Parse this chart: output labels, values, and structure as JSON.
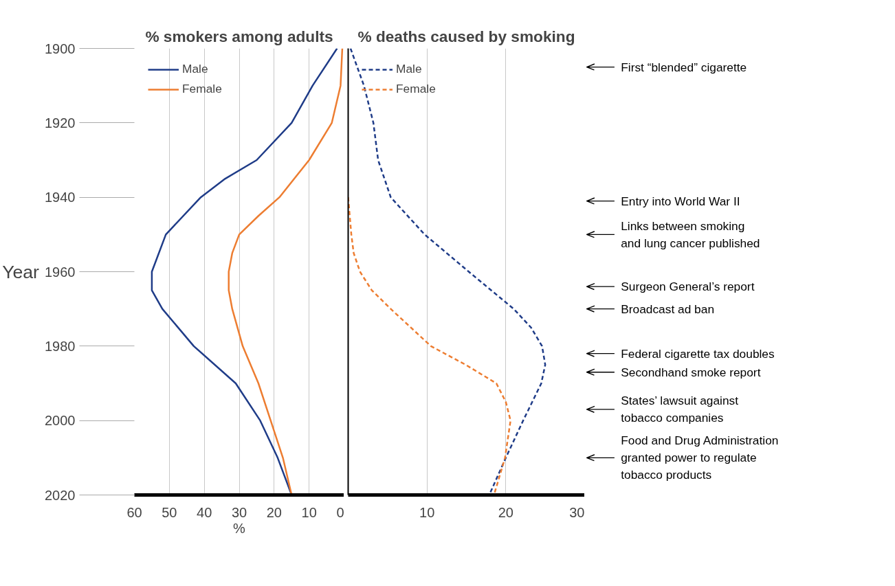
{
  "chart_data": [
    {
      "type": "line",
      "orientation": "horizontal",
      "title": "% smokers among adults",
      "xlabel": "%",
      "ylabel": "Year",
      "xlim": [
        60,
        0
      ],
      "ylim": [
        2020,
        1900
      ],
      "xticks": [
        60,
        50,
        40,
        30,
        20,
        10,
        0
      ],
      "yticks": [
        1900,
        1920,
        1940,
        1960,
        1980,
        2000,
        2020
      ],
      "grid": "x",
      "legend": "top left",
      "marker": "none",
      "series": [
        {
          "name": "Male",
          "color": "#1f3c88",
          "line_style": "solid",
          "x": [
            1900,
            1910,
            1920,
            1930,
            1935,
            1940,
            1950,
            1960,
            1965,
            1970,
            1980,
            1990,
            2000,
            2010,
            2020
          ],
          "values": [
            2,
            9,
            15,
            25,
            34,
            41,
            51,
            55,
            55,
            52,
            43,
            31,
            24,
            19,
            15
          ]
        },
        {
          "name": "Female",
          "color": "#ed7d31",
          "line_style": "solid",
          "x": [
            1900,
            1910,
            1920,
            1930,
            1940,
            1945,
            1950,
            1955,
            1960,
            1965,
            1970,
            1980,
            1990,
            2000,
            2010,
            2020
          ],
          "values": [
            0.5,
            1,
            3.5,
            10,
            18.5,
            24.5,
            30,
            32,
            33,
            33,
            32,
            29,
            24.5,
            21,
            17.5,
            15
          ]
        }
      ]
    },
    {
      "type": "line",
      "orientation": "horizontal",
      "title": "% deaths caused by smoking",
      "xlim": [
        0,
        30
      ],
      "ylim": [
        2020,
        1900
      ],
      "xticks": [
        10,
        20,
        30
      ],
      "yticks": [
        1900,
        1920,
        1940,
        1960,
        1980,
        2000,
        2020
      ],
      "grid": "x",
      "legend": "top left",
      "tick_labels": "x",
      "marker": "none",
      "series": [
        {
          "name": "Male",
          "color": "#1f3c88",
          "line_style": "dashed",
          "x": [
            1900,
            1910,
            1920,
            1930,
            1940,
            1950,
            1960,
            1970,
            1975,
            1980,
            1985,
            1990,
            2000,
            2010,
            2020
          ],
          "values": [
            0.3,
            2,
            3.2,
            3.8,
            5.4,
            9.7,
            15.3,
            21,
            23.2,
            24.6,
            25,
            24.5,
            22.2,
            20,
            17.9
          ]
        },
        {
          "name": "Female",
          "color": "#ed7d31",
          "line_style": "dashed",
          "x": [
            1940,
            1950,
            1955,
            1960,
            1965,
            1970,
            1980,
            1985,
            1990,
            1995,
            2000,
            2010,
            2020
          ],
          "values": [
            0,
            0.4,
            0.7,
            1.5,
            3,
            5.4,
            10.5,
            14.9,
            18.8,
            20,
            20.6,
            19.9,
            18.5
          ]
        }
      ],
      "ref_lines": [
        {
          "axis": "y",
          "value": 1905,
          "label": "First “blended” cigarette"
        },
        {
          "axis": "y",
          "value": 1941,
          "label": "Entry into World War II"
        },
        {
          "axis": "y",
          "value": 1950,
          "label": "Links between smoking\nand lung cancer published"
        },
        {
          "axis": "y",
          "value": 1964,
          "label": "Surgeon General’s report"
        },
        {
          "axis": "y",
          "value": 1970,
          "label": "Broadcast ad ban"
        },
        {
          "axis": "y",
          "value": 1982,
          "label": "Federal cigarette tax doubles"
        },
        {
          "axis": "y",
          "value": 1987,
          "label": "Secondhand smoke report"
        },
        {
          "axis": "y",
          "value": 1997,
          "label": "States’ lawsuit against\ntobacco companies"
        },
        {
          "axis": "y",
          "value": 2010,
          "label": "Food and Drug Administration\ngranted power to regulate\ntobacco products"
        }
      ]
    }
  ]
}
